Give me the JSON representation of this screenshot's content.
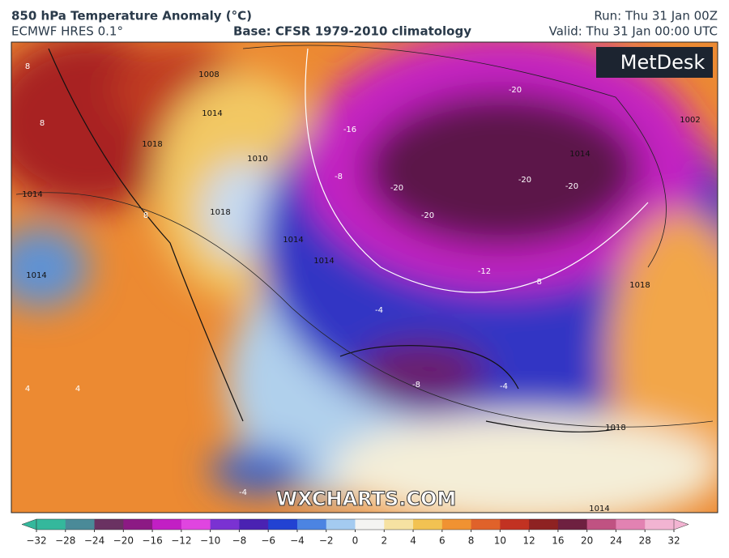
{
  "header": {
    "title": "850 hPa Temperature Anomaly (°C)",
    "model": "ECMWF HRES 0.1°",
    "base": "Base: CFSR 1979-2010 climatology",
    "run": "Run: Thu 31 Jan 00Z",
    "valid": "Valid: Thu 31 Jan 00:00 UTC"
  },
  "logo": "MetDesk",
  "watermark": "WXCHARTS.COM",
  "map_labels": [
    "-20",
    "-20",
    "-20",
    "-20",
    "-20",
    "-16",
    "-12",
    "-8",
    "-8",
    "-8",
    "-4",
    "-4",
    "-4",
    "8",
    "8",
    "8",
    "4",
    "4",
    "1014",
    "1014",
    "1014",
    "1018",
    "1018",
    "1010",
    "1008",
    "1014",
    "1014",
    "1018",
    "1002",
    "1014",
    "1018",
    "1014"
  ],
  "colorbar": {
    "ticks": [
      {
        "value": -32,
        "label": "−32"
      },
      {
        "value": -28,
        "label": "−28"
      },
      {
        "value": -24,
        "label": "−24"
      },
      {
        "value": -20,
        "label": "−20"
      },
      {
        "value": -16,
        "label": "−16"
      },
      {
        "value": -12,
        "label": "−12"
      },
      {
        "value": -10,
        "label": "−10"
      },
      {
        "value": -8,
        "label": "−8"
      },
      {
        "value": -6,
        "label": "−6"
      },
      {
        "value": -4,
        "label": "−4"
      },
      {
        "value": -2,
        "label": "−2"
      },
      0,
      2,
      4,
      6,
      8,
      10,
      12,
      16,
      20,
      24,
      28,
      32
    ],
    "colors": [
      "#34b89c",
      "#4a8a98",
      "#6a3262",
      "#8c1a84",
      "#c21fc4",
      "#e045e0",
      "#7a32d2",
      "#4a22b2",
      "#2242d2",
      "#4c84e2",
      "#a4cbf0",
      "#f4f4f2",
      "#f6e2a2",
      "#f2c252",
      "#f09232",
      "#e0622a",
      "#c23222",
      "#8e2222",
      "#6e2040",
      "#c05282",
      "#e282b2",
      "#f2b4d2"
    ]
  }
}
